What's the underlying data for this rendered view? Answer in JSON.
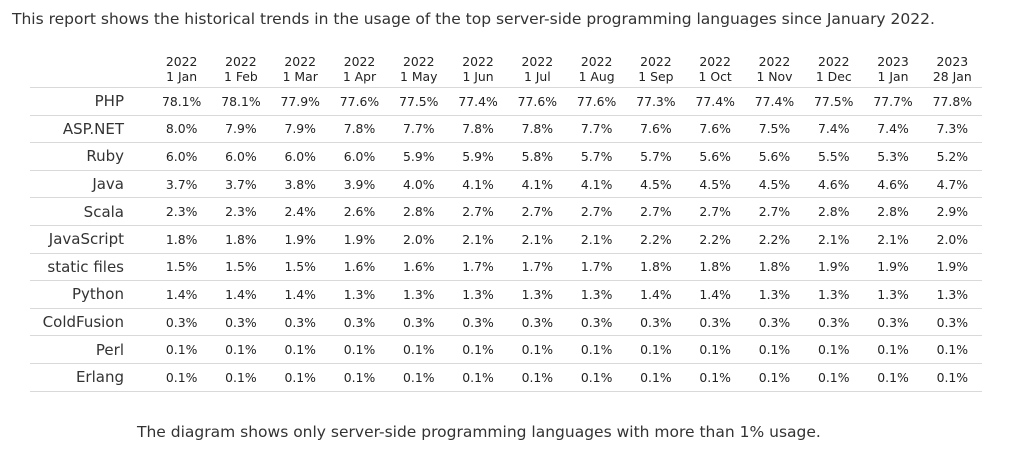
{
  "intro": "This report shows the historical trends in the usage of the top server-side programming languages since January 2022.",
  "note": "The diagram shows only server-side programming languages with more than 1% usage.",
  "table": {
    "columns": [
      {
        "year": "2022",
        "date": "1 Jan"
      },
      {
        "year": "2022",
        "date": "1 Feb"
      },
      {
        "year": "2022",
        "date": "1 Mar"
      },
      {
        "year": "2022",
        "date": "1 Apr"
      },
      {
        "year": "2022",
        "date": "1 May"
      },
      {
        "year": "2022",
        "date": "1 Jun"
      },
      {
        "year": "2022",
        "date": "1 Jul"
      },
      {
        "year": "2022",
        "date": "1 Aug"
      },
      {
        "year": "2022",
        "date": "1 Sep"
      },
      {
        "year": "2022",
        "date": "1 Oct"
      },
      {
        "year": "2022",
        "date": "1 Nov"
      },
      {
        "year": "2022",
        "date": "1 Dec"
      },
      {
        "year": "2023",
        "date": "1 Jan"
      },
      {
        "year": "2023",
        "date": "28 Jan"
      }
    ],
    "rows": [
      {
        "lang": "PHP",
        "values": [
          "78.1%",
          "78.1%",
          "77.9%",
          "77.6%",
          "77.5%",
          "77.4%",
          "77.6%",
          "77.6%",
          "77.3%",
          "77.4%",
          "77.4%",
          "77.5%",
          "77.7%",
          "77.8%"
        ]
      },
      {
        "lang": "ASP.NET",
        "values": [
          "8.0%",
          "7.9%",
          "7.9%",
          "7.8%",
          "7.7%",
          "7.8%",
          "7.8%",
          "7.7%",
          "7.6%",
          "7.6%",
          "7.5%",
          "7.4%",
          "7.4%",
          "7.3%"
        ]
      },
      {
        "lang": "Ruby",
        "values": [
          "6.0%",
          "6.0%",
          "6.0%",
          "6.0%",
          "5.9%",
          "5.9%",
          "5.8%",
          "5.7%",
          "5.7%",
          "5.6%",
          "5.6%",
          "5.5%",
          "5.3%",
          "5.2%"
        ]
      },
      {
        "lang": "Java",
        "values": [
          "3.7%",
          "3.7%",
          "3.8%",
          "3.9%",
          "4.0%",
          "4.1%",
          "4.1%",
          "4.1%",
          "4.5%",
          "4.5%",
          "4.5%",
          "4.6%",
          "4.6%",
          "4.7%"
        ]
      },
      {
        "lang": "Scala",
        "values": [
          "2.3%",
          "2.3%",
          "2.4%",
          "2.6%",
          "2.8%",
          "2.7%",
          "2.7%",
          "2.7%",
          "2.7%",
          "2.7%",
          "2.7%",
          "2.8%",
          "2.8%",
          "2.9%"
        ]
      },
      {
        "lang": "JavaScript",
        "values": [
          "1.8%",
          "1.8%",
          "1.9%",
          "1.9%",
          "2.0%",
          "2.1%",
          "2.1%",
          "2.1%",
          "2.2%",
          "2.2%",
          "2.2%",
          "2.1%",
          "2.1%",
          "2.0%"
        ]
      },
      {
        "lang": "static files",
        "values": [
          "1.5%",
          "1.5%",
          "1.5%",
          "1.6%",
          "1.6%",
          "1.7%",
          "1.7%",
          "1.7%",
          "1.8%",
          "1.8%",
          "1.8%",
          "1.9%",
          "1.9%",
          "1.9%"
        ]
      },
      {
        "lang": "Python",
        "values": [
          "1.4%",
          "1.4%",
          "1.4%",
          "1.3%",
          "1.3%",
          "1.3%",
          "1.3%",
          "1.3%",
          "1.4%",
          "1.4%",
          "1.3%",
          "1.3%",
          "1.3%",
          "1.3%"
        ]
      },
      {
        "lang": "ColdFusion",
        "values": [
          "0.3%",
          "0.3%",
          "0.3%",
          "0.3%",
          "0.3%",
          "0.3%",
          "0.3%",
          "0.3%",
          "0.3%",
          "0.3%",
          "0.3%",
          "0.3%",
          "0.3%",
          "0.3%"
        ]
      },
      {
        "lang": "Perl",
        "values": [
          "0.1%",
          "0.1%",
          "0.1%",
          "0.1%",
          "0.1%",
          "0.1%",
          "0.1%",
          "0.1%",
          "0.1%",
          "0.1%",
          "0.1%",
          "0.1%",
          "0.1%",
          "0.1%"
        ]
      },
      {
        "lang": "Erlang",
        "values": [
          "0.1%",
          "0.1%",
          "0.1%",
          "0.1%",
          "0.1%",
          "0.1%",
          "0.1%",
          "0.1%",
          "0.1%",
          "0.1%",
          "0.1%",
          "0.1%",
          "0.1%",
          "0.1%"
        ]
      }
    ]
  }
}
